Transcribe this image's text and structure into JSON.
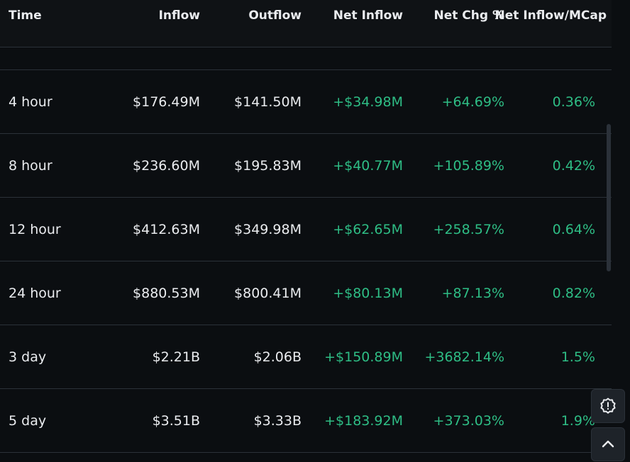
{
  "table": {
    "headers": {
      "time": "Time",
      "inflow": "Inflow",
      "outflow": "Outflow",
      "net_inflow": "Net Inflow",
      "net_chg": "Net Chg %",
      "net_mcap": "Net Inflow/MCap"
    },
    "rows": [
      {
        "time": "4 hour",
        "inflow": "$176.49M",
        "outflow": "$141.50M",
        "net_inflow": "+$34.98M",
        "net_chg": "+64.69%",
        "net_mcap": "0.36%"
      },
      {
        "time": "8 hour",
        "inflow": "$236.60M",
        "outflow": "$195.83M",
        "net_inflow": "+$40.77M",
        "net_chg": "+105.89%",
        "net_mcap": "0.42%"
      },
      {
        "time": "12 hour",
        "inflow": "$412.63M",
        "outflow": "$349.98M",
        "net_inflow": "+$62.65M",
        "net_chg": "+258.57%",
        "net_mcap": "0.64%"
      },
      {
        "time": "24 hour",
        "inflow": "$880.53M",
        "outflow": "$800.41M",
        "net_inflow": "+$80.13M",
        "net_chg": "+87.13%",
        "net_mcap": "0.82%"
      },
      {
        "time": "3 day",
        "inflow": "$2.21B",
        "outflow": "$2.06B",
        "net_inflow": "+$150.89M",
        "net_chg": "+3682.14%",
        "net_mcap": "1.5%"
      },
      {
        "time": "5 day",
        "inflow": "$3.51B",
        "outflow": "$3.33B",
        "net_inflow": "+$183.92M",
        "net_chg": "+373.03%",
        "net_mcap": "1.9%"
      }
    ]
  },
  "floating_buttons": {
    "feedback_icon": "alert-badge-icon",
    "scroll_top_icon": "chevron-up-icon"
  },
  "colors": {
    "positive": "#2ebd85",
    "text": "#eaecef",
    "background": "#0b0e11",
    "divider": "#2b3139"
  }
}
